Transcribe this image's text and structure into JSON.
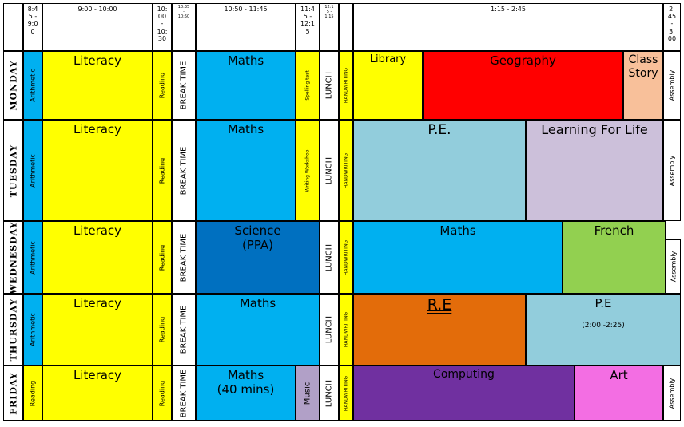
{
  "header": {
    "t1": [
      "8:4",
      "5 -",
      "9:0",
      "0"
    ],
    "t2": "9:00 - 10:00",
    "t3": [
      "10:",
      "00",
      "-",
      "10:",
      "30"
    ],
    "t4": [
      "10:35",
      "-",
      "10:50"
    ],
    "t5": "10:50 - 11:45",
    "t6": [
      "11:4",
      "5 -",
      "12:1",
      "5"
    ],
    "t7": [
      "12:1",
      "5 -",
      "1:15"
    ],
    "t8": "1:15 - 2:45",
    "t9": [
      "2:",
      "45",
      "-",
      "3:",
      "00"
    ]
  },
  "days": {
    "mon": "MONDAY",
    "tue": "TUESDAY",
    "wed": "WEDNESDAY",
    "thu": "THURSDAY",
    "fri": "FRIDAY"
  },
  "lessons": {
    "arithmetic": "Arithmetic",
    "reading": "Reading",
    "literacy": "Literacy",
    "break_time": "BREAK TIME",
    "maths": "Maths",
    "spelling_test": "Spelling test",
    "writing_workshop": "Writing Workshop",
    "lunch": "LUNCH",
    "handwriting": "HANDWRITING",
    "assembly": "Assembly",
    "library": "Library",
    "geography": "Geography",
    "class_story": [
      "Class",
      "Story"
    ],
    "pe_tue": "P.E.",
    "learning_for_life": "Learning For Life",
    "science": [
      "Science",
      "(PPA)"
    ],
    "french": "French",
    "re": "R.E",
    "pe_thu": "P.E",
    "pe_thu_time": "(2:00 -2:25)",
    "maths_fri": [
      "Maths",
      "(40 mins)"
    ],
    "music": "Music",
    "computing": "Computing",
    "art": "Art"
  },
  "colors": {
    "yellow": "#FFFF00",
    "blue": "#00B0F0",
    "red": "#FF0000",
    "peach": "#F8C09A",
    "light_blue": "#92CDDC",
    "lavender": "#CCC0DA",
    "dark_blue": "#0070C0",
    "green": "#92D050",
    "orange": "#E36C0A",
    "purple": "#7030A0",
    "pink": "#F36EE3",
    "music_lilac": "#B1A0C7"
  }
}
